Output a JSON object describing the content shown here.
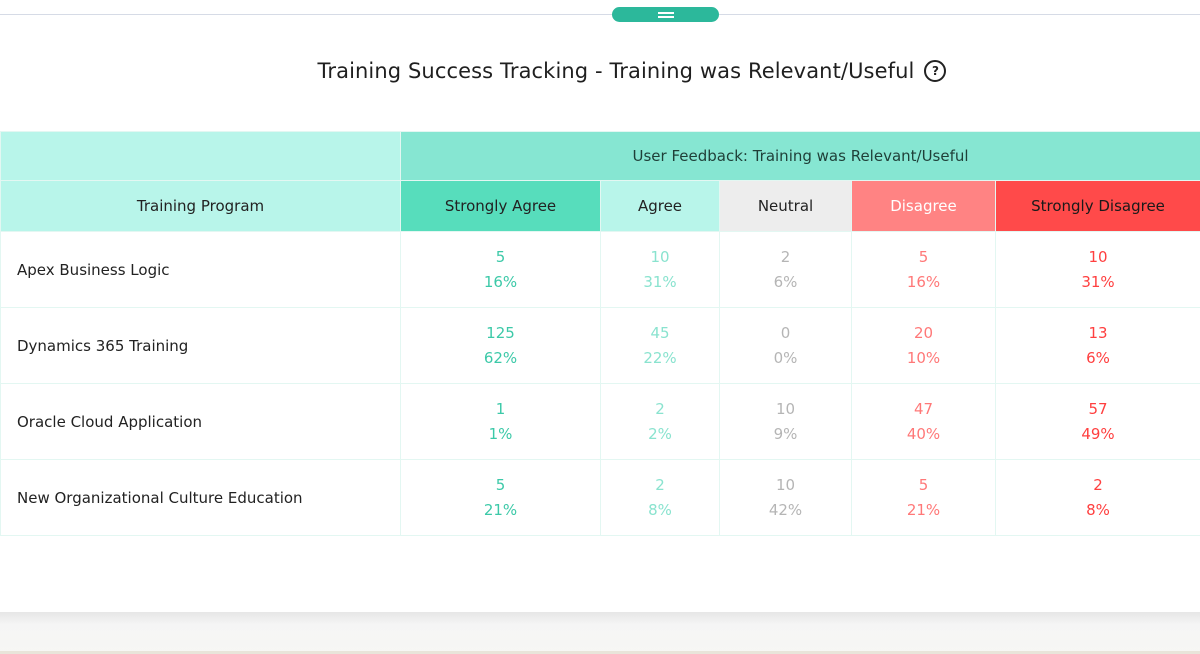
{
  "title": "Training Success Tracking - Training was Relevant/Useful",
  "help_icon_label": "?",
  "table": {
    "group_header": "User Feedback: Training was Relevant/Useful",
    "columns": {
      "program": "Training Program",
      "strongly_agree": "Strongly Agree",
      "agree": "Agree",
      "neutral": "Neutral",
      "disagree": "Disagree",
      "strongly_disagree": "Strongly Disagree"
    },
    "rows": [
      {
        "program": "Apex Business Logic",
        "strongly_agree": {
          "count": "5",
          "pct": "16%"
        },
        "agree": {
          "count": "10",
          "pct": "31%"
        },
        "neutral": {
          "count": "2",
          "pct": "6%"
        },
        "disagree": {
          "count": "5",
          "pct": "16%"
        },
        "strongly_disagree": {
          "count": "10",
          "pct": "31%"
        }
      },
      {
        "program": "Dynamics 365 Training",
        "strongly_agree": {
          "count": "125",
          "pct": "62%"
        },
        "agree": {
          "count": "45",
          "pct": "22%"
        },
        "neutral": {
          "count": "0",
          "pct": "0%"
        },
        "disagree": {
          "count": "20",
          "pct": "10%"
        },
        "strongly_disagree": {
          "count": "13",
          "pct": "6%"
        }
      },
      {
        "program": "Oracle Cloud Application",
        "strongly_agree": {
          "count": "1",
          "pct": "1%"
        },
        "agree": {
          "count": "2",
          "pct": "2%"
        },
        "neutral": {
          "count": "10",
          "pct": "9%"
        },
        "disagree": {
          "count": "47",
          "pct": "40%"
        },
        "strongly_disagree": {
          "count": "57",
          "pct": "49%"
        }
      },
      {
        "program": "New Organizational Culture Education",
        "strongly_agree": {
          "count": "5",
          "pct": "21%"
        },
        "agree": {
          "count": "2",
          "pct": "8%"
        },
        "neutral": {
          "count": "10",
          "pct": "42%"
        },
        "disagree": {
          "count": "5",
          "pct": "21%"
        },
        "strongly_disagree": {
          "count": "2",
          "pct": "8%"
        }
      }
    ]
  },
  "colors": {
    "accent": "#2cb89b",
    "strongly_agree_header": "#57ddbc",
    "agree_header": "#b8f5ea",
    "neutral_header": "#ededed",
    "disagree_header": "#ff8383",
    "strongly_disagree_header": "#ff4a4a"
  }
}
